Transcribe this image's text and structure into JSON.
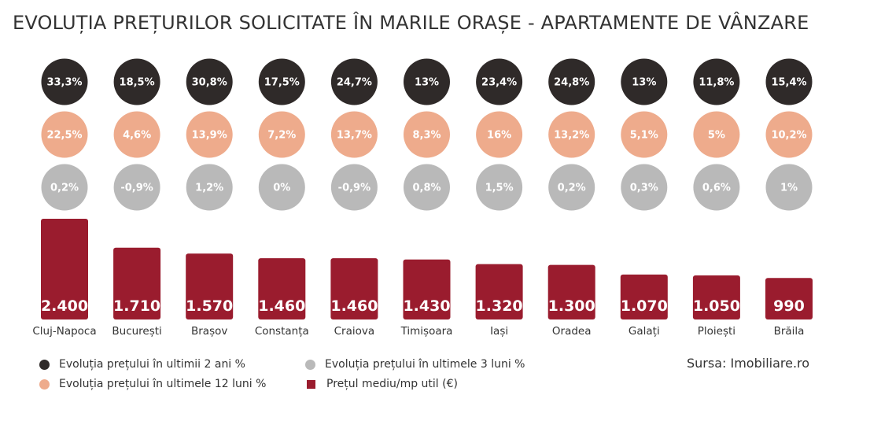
{
  "title": "EVOLUȚIA PREȚURILOR SOLICITATE ÎN MARILE ORAȘE - APARTAMENTE DE VÂNZARE",
  "source": "Sursa: Imobiliare.ro",
  "colors": {
    "two_years": "#2f2a29",
    "twelve_months": "#eeab8c",
    "three_months": "#b9b9b9",
    "bar": "#9a1c2e"
  },
  "legend": {
    "two_years": "Evoluția prețului în ultimii 2 ani %",
    "twelve_months": "Evoluția prețului în ultimele 12 luni %",
    "three_months": "Evoluția prețului în ultimele 3 luni %",
    "price": "Prețul mediu/mp util (€)"
  },
  "chart_data": {
    "type": "bar",
    "categories": [
      "Cluj-Napoca",
      "București",
      "Brașov",
      "Constanța",
      "Craiova",
      "Timișoara",
      "Iași",
      "Oradea",
      "Galați",
      "Ploiești",
      "Brăila"
    ],
    "series": [
      {
        "name": "Prețul mediu/mp util (€)",
        "values": [
          2400,
          1710,
          1570,
          1460,
          1460,
          1430,
          1320,
          1300,
          1070,
          1050,
          990
        ],
        "labels": [
          "2.400",
          "1.710",
          "1.570",
          "1.460",
          "1.460",
          "1.430",
          "1.320",
          "1.300",
          "1.070",
          "1.050",
          "990"
        ]
      },
      {
        "name": "Evoluția prețului în ultimii 2 ani %",
        "labels": [
          "33,3%",
          "18,5%",
          "30,8%",
          "17,5%",
          "24,7%",
          "13%",
          "23,4%",
          "24,8%",
          "13%",
          "11,8%",
          "15,4%"
        ]
      },
      {
        "name": "Evoluția prețului în ultimele 12 luni %",
        "labels": [
          "22,5%",
          "4,6%",
          "13,9%",
          "7,2%",
          "13,7%",
          "8,3%",
          "16%",
          "13,2%",
          "5,1%",
          "5%",
          "10,2%"
        ]
      },
      {
        "name": "Evoluția prețului în ultimele 3 luni %",
        "labels": [
          "0,2%",
          "-0,9%",
          "1,2%",
          "0%",
          "-0,9%",
          "0,8%",
          "1,5%",
          "0,2%",
          "0,3%",
          "0,6%",
          "1%"
        ]
      }
    ],
    "legend_position": "bottom-left",
    "grid": false
  }
}
